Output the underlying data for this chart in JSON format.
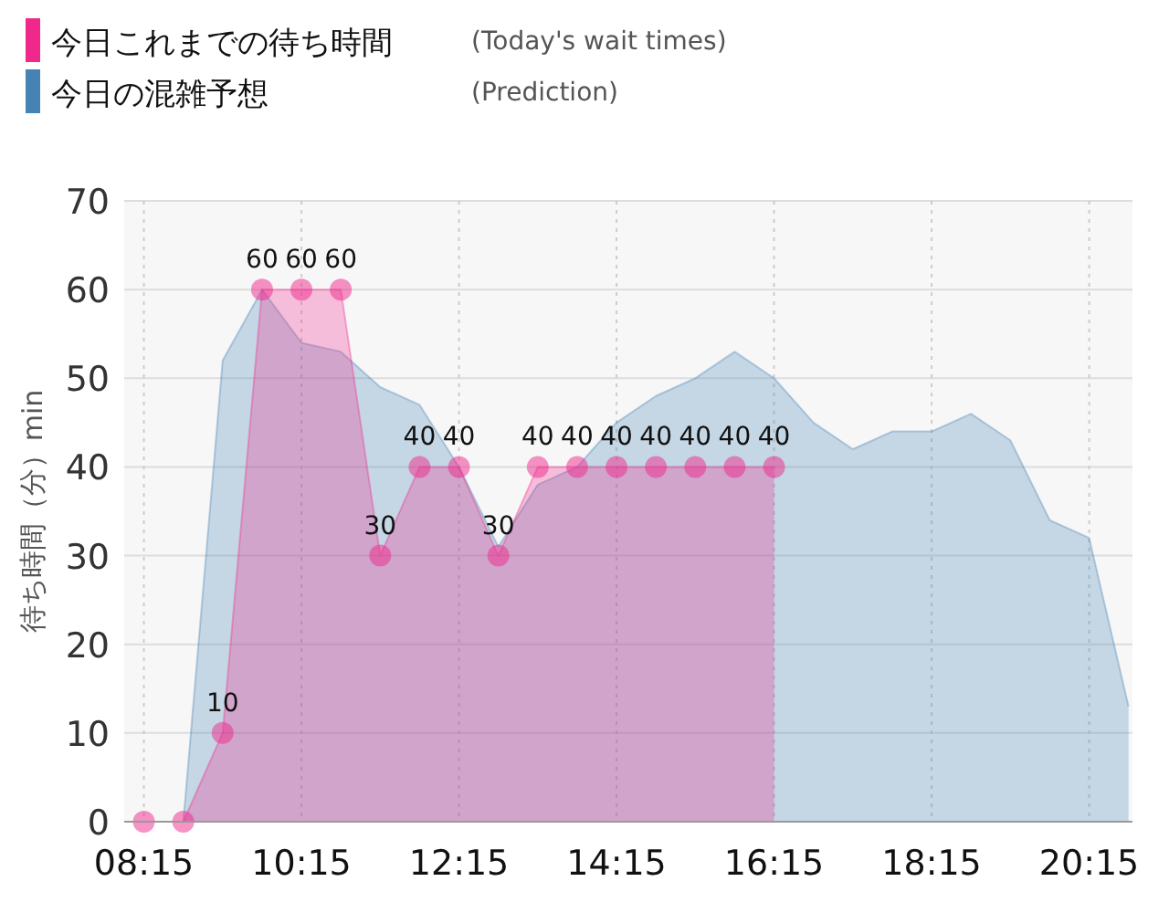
{
  "chart_data": {
    "type": "area",
    "ylabel": "待ち時間（分）min",
    "xlim": [
      8.0,
      20.8
    ],
    "ylim": [
      0,
      70
    ],
    "xticks": [
      {
        "value": 8.25,
        "label": "08:15"
      },
      {
        "value": 10.25,
        "label": "10:15"
      },
      {
        "value": 12.25,
        "label": "12:15"
      },
      {
        "value": 14.25,
        "label": "14:15"
      },
      {
        "value": 16.25,
        "label": "16:15"
      },
      {
        "value": 18.25,
        "label": "18:15"
      },
      {
        "value": 20.25,
        "label": "20:15"
      }
    ],
    "yticks": [
      0,
      10,
      20,
      30,
      40,
      50,
      60,
      70
    ],
    "grid": true,
    "legend": "top left",
    "annotations": [
      "(Today's wait times)",
      "(Prediction)"
    ],
    "series": [
      {
        "name": "今日の混雑予想",
        "color": "#4682b4",
        "x": [
          8.25,
          8.75,
          9.25,
          9.75,
          10.25,
          10.75,
          11.25,
          11.75,
          12.25,
          12.75,
          13.25,
          13.75,
          14.25,
          14.75,
          15.25,
          15.75,
          16.25,
          16.75,
          17.25,
          17.75,
          18.25,
          18.75,
          19.25,
          19.75,
          20.25,
          20.75
        ],
        "values": [
          0,
          0,
          52,
          60,
          54,
          53,
          49,
          47,
          40,
          31,
          38,
          40,
          45,
          48,
          50,
          53,
          50,
          45,
          42,
          44,
          44,
          46,
          43,
          34,
          32,
          13
        ]
      },
      {
        "name": "今日これまでの待ち時間",
        "color": "#f0288c",
        "marker": "circle",
        "x": [
          8.25,
          8.75,
          9.25,
          9.75,
          10.25,
          10.75,
          11.25,
          11.75,
          12.25,
          12.75,
          13.25,
          13.75,
          14.25,
          14.75,
          15.25,
          15.75,
          16.25
        ],
        "values": [
          0,
          0,
          10,
          60,
          60,
          60,
          30,
          40,
          40,
          30,
          40,
          40,
          40,
          40,
          40,
          40,
          40
        ],
        "value_labels": [
          null,
          null,
          "10",
          "60",
          "60",
          "60",
          "30",
          "40",
          "40",
          "30",
          "40",
          "40",
          "40",
          "40",
          "40",
          "40",
          "40"
        ]
      }
    ]
  }
}
